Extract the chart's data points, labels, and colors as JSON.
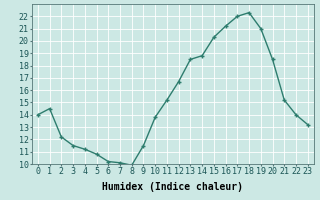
{
  "x": [
    0,
    1,
    2,
    3,
    4,
    5,
    6,
    7,
    8,
    9,
    10,
    11,
    12,
    13,
    14,
    15,
    16,
    17,
    18,
    19,
    20,
    21,
    22,
    23
  ],
  "y": [
    14,
    14.5,
    12.2,
    11.5,
    11.2,
    10.8,
    10.2,
    10.1,
    9.9,
    11.5,
    13.8,
    15.2,
    16.7,
    18.5,
    18.8,
    20.3,
    21.2,
    22.0,
    22.3,
    21.0,
    18.5,
    15.2,
    14.0,
    13.2
  ],
  "title": "",
  "xlabel": "Humidex (Indice chaleur)",
  "ylabel": "",
  "line_color": "#2e7d6e",
  "marker": "+",
  "background_color": "#cce8e4",
  "grid_color": "#ffffff",
  "grid_minor_color": "#e0f0ee",
  "ylim": [
    10,
    23
  ],
  "xlim": [
    -0.5,
    23.5
  ],
  "yticks": [
    10,
    11,
    12,
    13,
    14,
    15,
    16,
    17,
    18,
    19,
    20,
    21,
    22
  ],
  "xticks": [
    0,
    1,
    2,
    3,
    4,
    5,
    6,
    7,
    8,
    9,
    10,
    11,
    12,
    13,
    14,
    15,
    16,
    17,
    18,
    19,
    20,
    21,
    22,
    23
  ],
  "xtick_labels": [
    "0",
    "1",
    "2",
    "3",
    "4",
    "5",
    "6",
    "7",
    "8",
    "9",
    "10",
    "11",
    "12",
    "13",
    "14",
    "15",
    "16",
    "17",
    "18",
    "19",
    "20",
    "21",
    "22",
    "23"
  ],
  "xlabel_fontsize": 7,
  "tick_fontsize": 6,
  "marker_size": 3,
  "line_width": 1.0
}
